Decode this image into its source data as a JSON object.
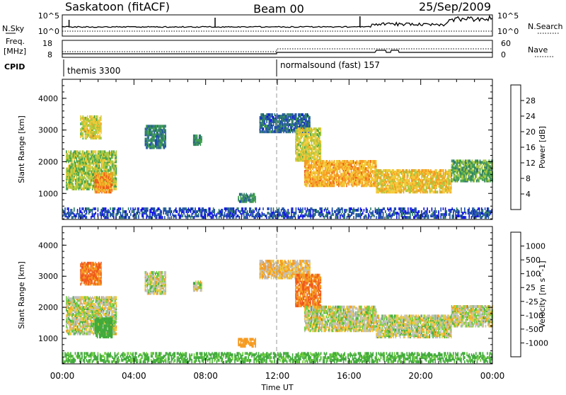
{
  "header": {
    "station": "Saskatoon (fitACF)",
    "beam": "Beam 00",
    "date": "25/Sep/2009"
  },
  "noise_panel": {
    "left_label": "N.Sky",
    "right_label": "N.Search",
    "left_ticks": [
      "10^5",
      "10^0"
    ],
    "right_ticks": [
      "10^5",
      "10^0"
    ]
  },
  "freq_panel": {
    "left_label_1": "Freq.",
    "left_label_2": "[MHz]",
    "right_label": "Nave",
    "left_ticks": [
      "18",
      "8"
    ],
    "right_ticks": [
      "60",
      "0"
    ]
  },
  "cpid": {
    "label": "CPID",
    "programs": [
      {
        "name": "themis 3300",
        "start_hour": 0
      },
      {
        "name": "normalsound (fast) 157",
        "start_hour": 12
      }
    ]
  },
  "chart_data": [
    {
      "type": "heatmap",
      "name": "Power",
      "ylabel": "Slant Range [km]",
      "xlabel": "Time UT",
      "xlim_hours": [
        0,
        24
      ],
      "ylim": [
        180,
        4600
      ],
      "y_ticks": [
        1000,
        2000,
        3000,
        4000
      ],
      "x_tick_labels": [
        "00:00",
        "04:00",
        "08:00",
        "12:00",
        "16:00",
        "20:00",
        "00:00"
      ],
      "colorbar": {
        "label": "Power [dB]",
        "ticks": [
          "28",
          "24",
          "20",
          "16",
          "12",
          "8",
          "4"
        ],
        "colors": [
          "#1010e8",
          "#1d4ea8",
          "#2e7b6a",
          "#3fa04a",
          "#a6c83c",
          "#f2c833",
          "#f59a1f",
          "#f0581a",
          "#e6191b"
        ]
      },
      "regions": [
        {
          "t0": 0.0,
          "t1": 24.0,
          "r0": 200,
          "r1": 500,
          "v": 5
        },
        {
          "t0": 0.2,
          "t1": 3.0,
          "r0": 1100,
          "r1": 2300,
          "v": 16
        },
        {
          "t0": 1.0,
          "t1": 2.2,
          "r0": 2700,
          "r1": 3400,
          "v": 18
        },
        {
          "t0": 1.8,
          "t1": 2.8,
          "r0": 1000,
          "r1": 1600,
          "v": 24
        },
        {
          "t0": 4.6,
          "t1": 5.8,
          "r0": 2400,
          "r1": 3100,
          "v": 9
        },
        {
          "t0": 7.3,
          "t1": 7.8,
          "r0": 2500,
          "r1": 2800,
          "v": 10
        },
        {
          "t0": 9.8,
          "t1": 10.8,
          "r0": 700,
          "r1": 950,
          "v": 10
        },
        {
          "t0": 11.0,
          "t1": 13.8,
          "r0": 2900,
          "r1": 3450,
          "v": 7
        },
        {
          "t0": 13.0,
          "t1": 14.4,
          "r0": 2000,
          "r1": 3000,
          "v": 18
        },
        {
          "t0": 13.5,
          "t1": 17.5,
          "r0": 1200,
          "r1": 2000,
          "v": 22
        },
        {
          "t0": 17.5,
          "t1": 21.7,
          "r0": 1000,
          "r1": 1700,
          "v": 20
        },
        {
          "t0": 21.7,
          "t1": 24.0,
          "r0": 1350,
          "r1": 2000,
          "v": 13
        }
      ]
    },
    {
      "type": "heatmap",
      "name": "Velocity",
      "ylabel": "Slant Range [km]",
      "xlabel": "Time UT",
      "xlim_hours": [
        0,
        24
      ],
      "ylim": [
        180,
        4600
      ],
      "y_ticks": [
        1000,
        2000,
        3000,
        4000
      ],
      "x_tick_labels": [
        "00:00",
        "04:00",
        "08:00",
        "12:00",
        "16:00",
        "20:00",
        "00:00"
      ],
      "colorbar": {
        "label": "Velocity [m s^-1]",
        "ticks": [
          "1000",
          "500",
          "100",
          "25",
          "-25",
          "-100",
          "-500",
          "-1000"
        ],
        "colors": [
          "#1d3fbf",
          "#2e7a6b",
          "#3faa3a",
          "#6fcf3c",
          "#bebebe",
          "#f2c833",
          "#f59a1f",
          "#f0581a",
          "#e6191b"
        ]
      },
      "regions": [
        {
          "t0": 0.0,
          "t1": 24.0,
          "r0": 200,
          "r1": 500,
          "v": 100
        },
        {
          "t0": 0.2,
          "t1": 3.0,
          "r0": 1100,
          "r1": 2300,
          "v": 0
        },
        {
          "t0": 1.0,
          "t1": 2.2,
          "r0": 2700,
          "r1": 3400,
          "v": -300
        },
        {
          "t0": 1.8,
          "t1": 2.8,
          "r0": 1000,
          "r1": 1600,
          "v": 200
        },
        {
          "t0": 4.6,
          "t1": 5.8,
          "r0": 2400,
          "r1": 3100,
          "v": 0
        },
        {
          "t0": 7.3,
          "t1": 7.8,
          "r0": 2500,
          "r1": 2800,
          "v": 0
        },
        {
          "t0": 9.8,
          "t1": 10.8,
          "r0": 700,
          "r1": 950,
          "v": -200
        },
        {
          "t0": 11.0,
          "t1": 13.8,
          "r0": 2900,
          "r1": 3450,
          "v": -50
        },
        {
          "t0": 13.0,
          "t1": 14.4,
          "r0": 2000,
          "r1": 3000,
          "v": -300
        },
        {
          "t0": 13.5,
          "t1": 17.5,
          "r0": 1200,
          "r1": 2000,
          "v": 0
        },
        {
          "t0": 17.5,
          "t1": 21.7,
          "r0": 1000,
          "r1": 1700,
          "v": 0
        },
        {
          "t0": 21.7,
          "t1": 24.0,
          "r0": 1350,
          "r1": 2000,
          "v": 0
        }
      ]
    }
  ]
}
